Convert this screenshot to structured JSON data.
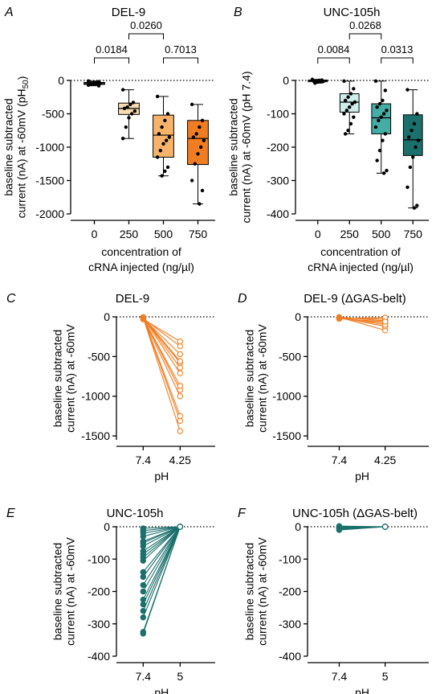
{
  "colors": {
    "orange_light": "#f9ddb0",
    "orange_mid": "#f7b36a",
    "orange_dark": "#f07d22",
    "orange_line": "#f07d22",
    "teal_light": "#cdeeea",
    "teal_mid": "#44ada6",
    "teal_dark": "#1b706c",
    "teal_line": "#1b706c"
  },
  "panels": {
    "A": {
      "letter": "A",
      "title": "DEL-9"
    },
    "B": {
      "letter": "B",
      "title": "UNC-105h"
    },
    "C": {
      "letter": "C",
      "title": "DEL-9"
    },
    "D": {
      "letter": "D",
      "title": "DEL-9 (ΔGAS-belt)"
    },
    "E": {
      "letter": "E",
      "title": "UNC-105h"
    },
    "F": {
      "letter": "F",
      "title": "UNC-105h (ΔGAS-belt)"
    }
  },
  "chart_data": [
    {
      "id": "A",
      "type": "box",
      "title": "DEL-9",
      "ylabel": "baseline subtracted current (nA) at -60mV (pH50)",
      "ylabel_lines": [
        "baseline subtracted",
        "current (nA) at -60mV (pH"
      ],
      "ylabel_sub": "50",
      "ylabel_close": ")",
      "xlabel_lines": [
        "concentration of",
        "cRNA injected (ng/µl)"
      ],
      "categories": [
        "0",
        "250",
        "500",
        "750"
      ],
      "yticks": [
        "0",
        "-500",
        "-1000",
        "-1500",
        "-2000"
      ],
      "ylim": [
        -2000,
        0
      ],
      "boxes": [
        {
          "cat": "0",
          "min": -80,
          "q1": -60,
          "median": -45,
          "q3": -30,
          "max": -10,
          "color": "white"
        },
        {
          "cat": "250",
          "min": -870,
          "q1": -510,
          "median": -420,
          "q3": -340,
          "max": -140,
          "color": "orange_light"
        },
        {
          "cat": "500",
          "min": -1430,
          "q1": -1150,
          "median": -820,
          "q3": -520,
          "max": -240,
          "color": "orange_mid"
        },
        {
          "cat": "750",
          "min": -1850,
          "q1": -1260,
          "median": -870,
          "q3": -600,
          "max": -360,
          "color": "orange_dark"
        }
      ],
      "points": [
        [
          -10,
          -20,
          -30,
          -35,
          -40,
          -45,
          -50,
          -55,
          -60,
          -70,
          -80
        ],
        [
          -140,
          -330,
          -360,
          -400,
          -420,
          -460,
          -500,
          -560,
          -700,
          -870
        ],
        [
          -240,
          -500,
          -600,
          -700,
          -800,
          -850,
          -900,
          -950,
          -1050,
          -1150,
          -1300,
          -1360,
          -1430
        ],
        [
          -360,
          -600,
          -700,
          -800,
          -850,
          -900,
          -1000,
          -1100,
          -1250,
          -1500,
          -1650,
          -1850
        ]
      ],
      "comparisons": [
        {
          "from": "0",
          "to": "250",
          "p": "0.0184",
          "level": 1
        },
        {
          "from": "500",
          "to": "750",
          "p": "0.7013",
          "level": 1
        },
        {
          "from": "250",
          "to": "500",
          "p": "0.0260",
          "level": 2
        }
      ]
    },
    {
      "id": "B",
      "type": "box",
      "title": "UNC-105h",
      "ylabel": "baseline subtracted current (nA) at -60mV (pH 7.4)",
      "ylabel_lines": [
        "baseline subtracted",
        "current (nA) at -60mV (pH 7.4)"
      ],
      "xlabel_lines": [
        "concentration of",
        "cRNA injected (ng/µl)"
      ],
      "categories": [
        "0",
        "250",
        "500",
        "750"
      ],
      "yticks": [
        "0",
        "-100",
        "-200",
        "-300",
        "-400"
      ],
      "ylim": [
        -400,
        0
      ],
      "boxes": [
        {
          "cat": "0",
          "min": -8,
          "q1": -4,
          "median": -1,
          "q3": 1,
          "max": 3,
          "color": "white"
        },
        {
          "cat": "250",
          "min": -160,
          "q1": -95,
          "median": -65,
          "q3": -40,
          "max": -2,
          "color": "teal_light"
        },
        {
          "cat": "500",
          "min": -278,
          "q1": -160,
          "median": -112,
          "q3": -70,
          "max": -2,
          "color": "teal_mid"
        },
        {
          "cat": "750",
          "min": -382,
          "q1": -225,
          "median": -178,
          "q3": -103,
          "max": -28,
          "color": "teal_dark"
        }
      ],
      "points": [
        [
          3,
          1,
          0,
          -1,
          -2,
          -3,
          -4,
          -5,
          -8
        ],
        [
          -2,
          -25,
          -40,
          -50,
          -60,
          -65,
          -70,
          -80,
          -90,
          -100,
          -110,
          -130,
          -150,
          -160
        ],
        [
          -2,
          -30,
          -60,
          -70,
          -80,
          -90,
          -100,
          -110,
          -120,
          -140,
          -160,
          -180,
          -210,
          -240,
          -270,
          -278
        ],
        [
          -28,
          -100,
          -130,
          -150,
          -170,
          -180,
          -200,
          -230,
          -260,
          -320,
          -375,
          -382
        ]
      ],
      "comparisons": [
        {
          "from": "0",
          "to": "250",
          "p": "0.0084",
          "level": 1
        },
        {
          "from": "500",
          "to": "750",
          "p": "0.0313",
          "level": 1
        },
        {
          "from": "250",
          "to": "500",
          "p": "0.0268",
          "level": 2
        }
      ]
    },
    {
      "id": "C",
      "type": "line",
      "title": "DEL-9",
      "ylabel_lines": [
        "baseline subtracted",
        "current (nA) at -60mV"
      ],
      "xlabel": "pH",
      "categories": [
        "7.4",
        "4.25"
      ],
      "yticks": [
        "0",
        "-500",
        "-1000",
        "-1500"
      ],
      "ylim": [
        -1550,
        0
      ],
      "color": "orange_line",
      "pairs": [
        [
          -10,
          -1440
        ],
        [
          -10,
          -1310
        ],
        [
          -5,
          -1250
        ],
        [
          -20,
          -1000
        ],
        [
          -10,
          -920
        ],
        [
          -15,
          -870
        ],
        [
          -10,
          -710
        ],
        [
          -5,
          -640
        ],
        [
          -10,
          -580
        ],
        [
          -20,
          -470
        ],
        [
          -20,
          -370
        ],
        [
          -30,
          -310
        ],
        [
          -5,
          -560
        ]
      ]
    },
    {
      "id": "D",
      "type": "line",
      "title": "DEL-9 (ΔGAS-belt)",
      "ylabel_lines": [
        "baseline subtracted",
        "current (nA) at -60mV"
      ],
      "xlabel": "pH",
      "categories": [
        "7.4",
        "4.25"
      ],
      "yticks": [
        "0",
        "-500",
        "-1000",
        "-1500"
      ],
      "ylim": [
        -1550,
        0
      ],
      "color": "orange_line",
      "pairs": [
        [
          -5,
          -170
        ],
        [
          -10,
          -120
        ],
        [
          -15,
          -80
        ],
        [
          -5,
          -50
        ],
        [
          -10,
          -30
        ],
        [
          -20,
          -10
        ],
        [
          -5,
          -100
        ],
        [
          -25,
          -60
        ]
      ]
    },
    {
      "id": "E",
      "type": "line",
      "title": "UNC-105h",
      "ylabel_lines": [
        "baseline subtracted",
        "current (nA) at -60mV"
      ],
      "xlabel": "pH",
      "categories": [
        "7.4",
        "5"
      ],
      "yticks": [
        "0",
        "-100",
        "-200",
        "-300",
        "-400"
      ],
      "ylim": [
        -400,
        0
      ],
      "color": "teal_line",
      "pairs": [
        [
          -330,
          0
        ],
        [
          -325,
          0
        ],
        [
          -280,
          0
        ],
        [
          -260,
          0
        ],
        [
          -240,
          0
        ],
        [
          -225,
          0
        ],
        [
          -200,
          0
        ],
        [
          -180,
          0
        ],
        [
          -155,
          0
        ],
        [
          -140,
          0
        ],
        [
          -105,
          0
        ],
        [
          -95,
          0
        ],
        [
          -85,
          0
        ],
        [
          -75,
          0
        ],
        [
          -60,
          0
        ],
        [
          -50,
          0
        ],
        [
          -45,
          0
        ],
        [
          -30,
          0
        ],
        [
          -20,
          0
        ],
        [
          -12,
          0
        ],
        [
          -5,
          0
        ]
      ]
    },
    {
      "id": "F",
      "type": "line",
      "title": "UNC-105h (ΔGAS-belt)",
      "ylabel_lines": [
        "baseline subtracted",
        "current (nA) at -60mV"
      ],
      "xlabel": "pH",
      "categories": [
        "7.4",
        "5"
      ],
      "yticks": [
        "0",
        "-100",
        "-200",
        "-300",
        "-400"
      ],
      "ylim": [
        -400,
        0
      ],
      "color": "teal_line",
      "pairs": [
        [
          -10,
          0
        ],
        [
          -8,
          0
        ],
        [
          -6,
          0
        ],
        [
          -4,
          0
        ],
        [
          -2,
          0
        ],
        [
          0,
          0
        ],
        [
          2,
          0
        ],
        [
          -3,
          0
        ]
      ]
    }
  ]
}
